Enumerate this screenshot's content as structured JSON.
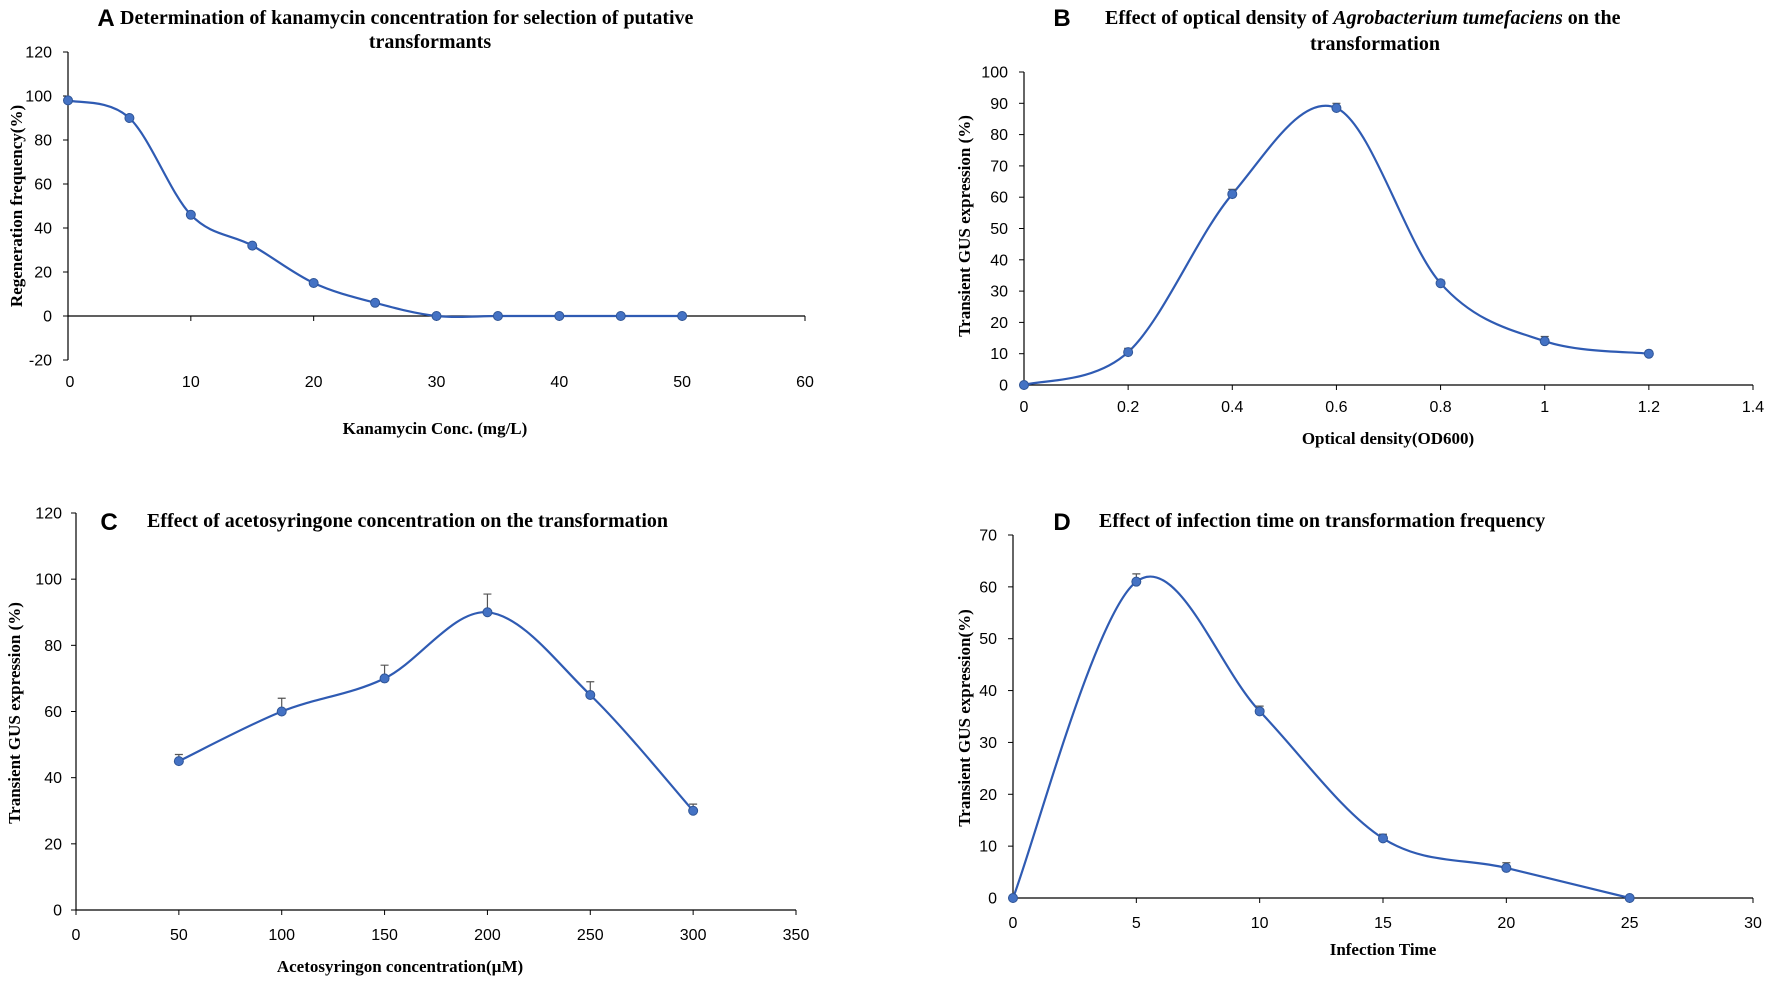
{
  "chart_data": [
    {
      "type": "line",
      "letter": "A",
      "title": "Determination of kanamycin concentration for selection of putative transformants",
      "title_lines": [
        "Determination of kanamycin concentration for selection of putative",
        "transformants"
      ],
      "xlabel": "Kanamycin  Conc. (mg/L)",
      "ylabel": "Regeneration  frequency(%)",
      "xlim": [
        0,
        60
      ],
      "ylim": [
        -20,
        120
      ],
      "xticks": [
        0,
        10,
        20,
        30,
        40,
        50,
        60
      ],
      "yticks": [
        -20,
        0,
        20,
        40,
        60,
        80,
        100,
        120
      ],
      "xtick_labels": [
        "0",
        "10",
        "20",
        "30",
        "40",
        "50",
        "60"
      ],
      "ytick_labels": [
        "-20",
        "0",
        "20",
        "40",
        "60",
        "80",
        "100",
        "120"
      ],
      "x": [
        0,
        5,
        10,
        15,
        20,
        25,
        30,
        35,
        40,
        45,
        50
      ],
      "values": [
        98,
        90,
        46,
        32,
        15,
        6,
        0,
        0,
        0,
        0,
        0
      ],
      "errors": [
        1,
        1,
        1,
        1,
        1,
        1,
        0,
        0,
        0,
        0,
        0
      ],
      "color": "#2f5bb3"
    },
    {
      "type": "line",
      "letter": "B",
      "title": "Effect of optical density of Agrobacterium tumefaciens on the transformation",
      "title_lines": [
        "Effect of optical density of |Agrobacterium tumefaciens| on the",
        "transformation"
      ],
      "xlabel": "Optical  density(OD600)",
      "ylabel": "Transient GUS  expression (%)",
      "xlim": [
        0,
        1.4
      ],
      "ylim": [
        0,
        100
      ],
      "xticks": [
        0,
        0.2,
        0.4,
        0.6,
        0.8,
        1.0,
        1.2,
        1.4
      ],
      "yticks": [
        0,
        10,
        20,
        30,
        40,
        50,
        60,
        70,
        80,
        90,
        100
      ],
      "xtick_labels": [
        "0",
        "0.2",
        "0.4",
        "0.6",
        "0.8",
        "1",
        "1.2",
        "1.4"
      ],
      "ytick_labels": [
        "0",
        "10",
        "20",
        "30",
        "40",
        "50",
        "60",
        "70",
        "80",
        "90",
        "100"
      ],
      "x": [
        0,
        0.2,
        0.4,
        0.6,
        0.8,
        1.0,
        1.2
      ],
      "values": [
        0,
        10.5,
        61,
        88.5,
        32.5,
        14,
        10
      ],
      "errors": [
        0,
        1.2,
        1.5,
        1.5,
        1,
        1.5,
        0
      ],
      "color": "#2f5bb3"
    },
    {
      "type": "line",
      "letter": "C",
      "title": "Effect of acetosyringone concentration on the transformation",
      "title_lines": [
        "Effect of acetosyringone concentration on the transformation"
      ],
      "xlabel": "Acetosyringon  concentration(µM)",
      "ylabel": "Transient GUS  expression (%)",
      "xlim": [
        0,
        350
      ],
      "ylim": [
        0,
        120
      ],
      "xticks": [
        0,
        50,
        100,
        150,
        200,
        250,
        300,
        350
      ],
      "yticks": [
        0,
        20,
        40,
        60,
        80,
        100,
        120
      ],
      "xtick_labels": [
        "0",
        "50",
        "100",
        "150",
        "200",
        "250",
        "300",
        "350"
      ],
      "ytick_labels": [
        "0",
        "20",
        "40",
        "60",
        "80",
        "100",
        "120"
      ],
      "x": [
        50,
        100,
        150,
        200,
        250,
        300
      ],
      "values": [
        45,
        60,
        70,
        90,
        65,
        30
      ],
      "errors": [
        2,
        4,
        4,
        5.5,
        4,
        2
      ],
      "color": "#2f5bb3"
    },
    {
      "type": "line",
      "letter": "D",
      "title": "Effect of infection time on transformation frequency",
      "title_lines": [
        "Effect of infection time on transformation frequency"
      ],
      "xlabel": "Infection  Time",
      "ylabel": "Transient GUS  expression(%)",
      "xlim": [
        0,
        30
      ],
      "ylim": [
        0,
        70
      ],
      "xticks": [
        0,
        5,
        10,
        15,
        20,
        25,
        30
      ],
      "yticks": [
        0,
        10,
        20,
        30,
        40,
        50,
        60,
        70
      ],
      "xtick_labels": [
        "0",
        "5",
        "10",
        "15",
        "20",
        "25",
        "30"
      ],
      "ytick_labels": [
        "0",
        "10",
        "20",
        "30",
        "40",
        "50",
        "60",
        "70"
      ],
      "x": [
        0,
        5,
        10,
        15,
        20,
        25
      ],
      "values": [
        0,
        61,
        36,
        11.5,
        5.8,
        0
      ],
      "errors": [
        0,
        1.5,
        1,
        0.8,
        1,
        0
      ],
      "color": "#2f5bb3"
    }
  ]
}
